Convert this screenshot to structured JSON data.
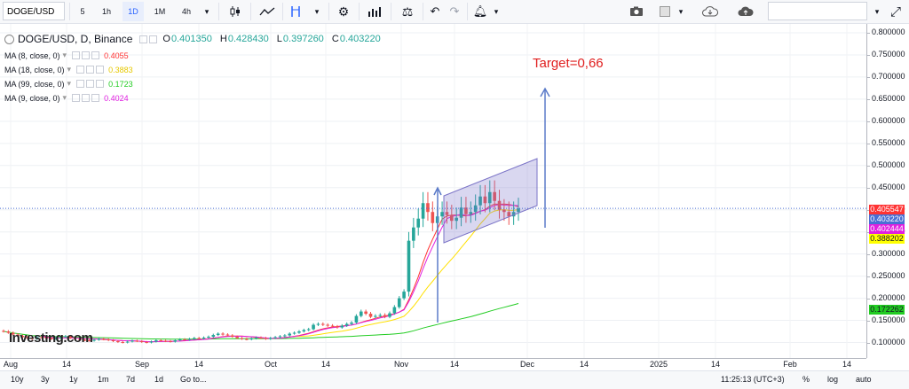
{
  "toolbar": {
    "symbol": "DOGE/USD",
    "intervals": [
      "5",
      "1h",
      "1D",
      "1M",
      "4h"
    ],
    "active_interval": "1D"
  },
  "legend": {
    "title": "DOGE/USD, D, Binance",
    "o_label": "O",
    "o": "0.401350",
    "h_label": "H",
    "h": "0.428430",
    "l_label": "L",
    "l": "0.397260",
    "c_label": "C",
    "c": "0.403220",
    "mas": [
      {
        "label": "MA (8, close, 0)",
        "value": "0.4055",
        "color": "#ff3333"
      },
      {
        "label": "MA (18, close, 0)",
        "value": "0.3883",
        "color": "#ffe000"
      },
      {
        "label": "MA (99, close, 0)",
        "value": "0.1723",
        "color": "#22cc22"
      },
      {
        "label": "MA (9, close, 0)",
        "value": "0.4024",
        "color": "#e020e0"
      }
    ]
  },
  "annotation": {
    "target": "Target=0,66",
    "color": "#e02020"
  },
  "watermark": "Investing.com",
  "y_axis": {
    "ticks": [
      "0.800000",
      "0.750000",
      "0.700000",
      "0.650000",
      "0.600000",
      "0.550000",
      "0.500000",
      "0.450000",
      "0.400000",
      "0.350000",
      "0.300000",
      "0.250000",
      "0.200000",
      "0.150000",
      "0.100000"
    ],
    "tick_values": [
      0.8,
      0.75,
      0.7,
      0.65,
      0.6,
      0.55,
      0.5,
      0.45,
      0.4,
      0.35,
      0.3,
      0.25,
      0.2,
      0.15,
      0.1
    ]
  },
  "price_tags": [
    {
      "text": "0.405547",
      "value": 0.405547,
      "bg": "#ff3333",
      "fg": "#ffffff"
    },
    {
      "text": "0.403220",
      "value": 0.40322,
      "bg": "#4a6fd4",
      "fg": "#ffffff"
    },
    {
      "text": "0.402444",
      "value": 0.402444,
      "bg": "#e020e0",
      "fg": "#ffffff"
    },
    {
      "text": "0.388202",
      "value": 0.388202,
      "bg": "#ffff00",
      "fg": "#131722"
    },
    {
      "text": "0.172262",
      "value": 0.172262,
      "bg": "#22cc22",
      "fg": "#131722"
    }
  ],
  "x_axis": {
    "ticks": [
      "Aug",
      "14",
      "Sep",
      "14",
      "Oct",
      "14",
      "Nov",
      "14",
      "Dec",
      "14",
      "2025",
      "14",
      "Feb",
      "14"
    ]
  },
  "bottom_bar": {
    "ranges": [
      "10y",
      "3y",
      "1y",
      "1m",
      "7d",
      "1d"
    ],
    "goto": "Go to...",
    "time": "11:25:13 (UTC+3)",
    "pct": "%",
    "log": "log",
    "auto": "auto"
  },
  "chart_data": {
    "type": "candlestick",
    "note_series_close": [
      0.125,
      0.122,
      0.118,
      0.115,
      0.112,
      0.11,
      0.108,
      0.112,
      0.111,
      0.109,
      0.108,
      0.11,
      0.112,
      0.114,
      0.11,
      0.108,
      0.106,
      0.105,
      0.104,
      0.106,
      0.108,
      0.107,
      0.105,
      0.103,
      0.101,
      0.1,
      0.102,
      0.104,
      0.103,
      0.101,
      0.1,
      0.102,
      0.105,
      0.104,
      0.103,
      0.102,
      0.105,
      0.107,
      0.106,
      0.108,
      0.11,
      0.109,
      0.111,
      0.113,
      0.117,
      0.12,
      0.118,
      0.116,
      0.113,
      0.11,
      0.108,
      0.107,
      0.109,
      0.111,
      0.11,
      0.108,
      0.11,
      0.112,
      0.114,
      0.116,
      0.12,
      0.122,
      0.125,
      0.128,
      0.13,
      0.14,
      0.142,
      0.14,
      0.138,
      0.136,
      0.134,
      0.138,
      0.142,
      0.145,
      0.16,
      0.17,
      0.165,
      0.158,
      0.16,
      0.162,
      0.158,
      0.166,
      0.18,
      0.2,
      0.215,
      0.33,
      0.36,
      0.38,
      0.415,
      0.395,
      0.37,
      0.385,
      0.395,
      0.388,
      0.375,
      0.382,
      0.405,
      0.39,
      0.395,
      0.41,
      0.43,
      0.415,
      0.44,
      0.42,
      0.4,
      0.395,
      0.385,
      0.395,
      0.403
    ],
    "ma_labels": [
      "MA (8, close, 0)",
      "MA (18, close, 0)",
      "MA (99, close, 0)",
      "MA (9, close, 0)"
    ],
    "last_values": {
      "open": 0.40135,
      "high": 0.42843,
      "low": 0.39726,
      "close": 0.40322
    },
    "ylim": [
      0.065,
      0.82
    ],
    "grid": true
  }
}
